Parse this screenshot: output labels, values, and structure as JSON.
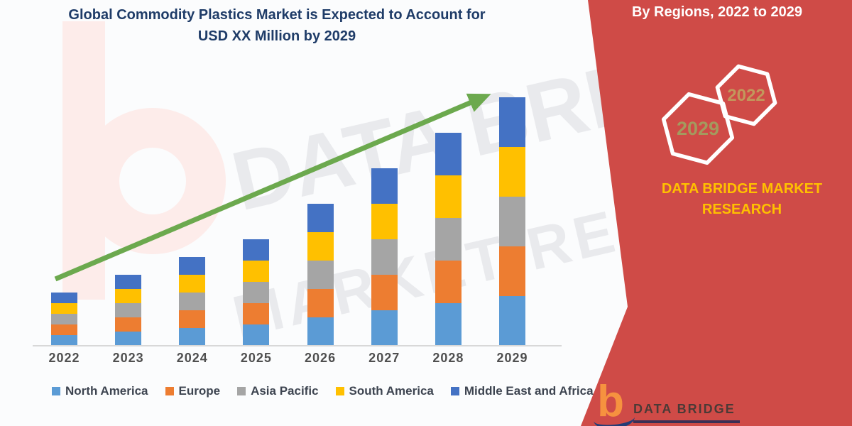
{
  "title": {
    "line1": "Global Commodity Plastics Market is Expected to Account for",
    "line2": "USD XX Million by 2029"
  },
  "right_panel": {
    "heading": "By Regions, 2022 to 2029",
    "hexagon_back_label": "2029",
    "hexagon_front_label": "2022",
    "brand_line1": "DATA BRIDGE MARKET",
    "brand_line2": "RESEARCH"
  },
  "footer_logo": {
    "b_glyph": "b",
    "brand_text": "DATA BRIDGE"
  },
  "watermark": {
    "line1": "DATA BRIDGE",
    "line2": "MARKET RESEARCH"
  },
  "chart_data": {
    "type": "bar",
    "stacked": true,
    "title": "Global Commodity Plastics Market is Expected to Account for USD XX Million by 2029",
    "categories": [
      "2022",
      "2023",
      "2024",
      "2025",
      "2026",
      "2027",
      "2028",
      "2029"
    ],
    "series": [
      {
        "name": "North America",
        "color": "#5B9BD5",
        "values": [
          15,
          20,
          25,
          30,
          40,
          50,
          60,
          70
        ]
      },
      {
        "name": "Europe",
        "color": "#ED7D31",
        "values": [
          15,
          20,
          25,
          30,
          40,
          50,
          60,
          70
        ]
      },
      {
        "name": "Asia Pacific",
        "color": "#A5A5A5",
        "values": [
          15,
          20,
          25,
          30,
          40,
          50,
          60,
          70
        ]
      },
      {
        "name": "South America",
        "color": "#FFC000",
        "values": [
          15,
          20,
          25,
          30,
          40,
          50,
          60,
          70
        ]
      },
      {
        "name": "Middle East and Africa",
        "color": "#4472C4",
        "values": [
          15,
          20,
          25,
          30,
          40,
          50,
          60,
          70
        ]
      }
    ],
    "stack_totals": [
      75,
      100,
      125,
      150,
      200,
      250,
      300,
      350
    ],
    "value_axis_visible": false,
    "legend_position": "bottom",
    "trend_arrow": true
  },
  "colors": {
    "accent_red": "#cf4b47",
    "title_navy": "#1f3c68",
    "brand_yellow": "#ffc000",
    "arrow_green": "#6ca94e",
    "hex_back_text": "#a49a5e",
    "hex_front_text": "#c2985c"
  }
}
